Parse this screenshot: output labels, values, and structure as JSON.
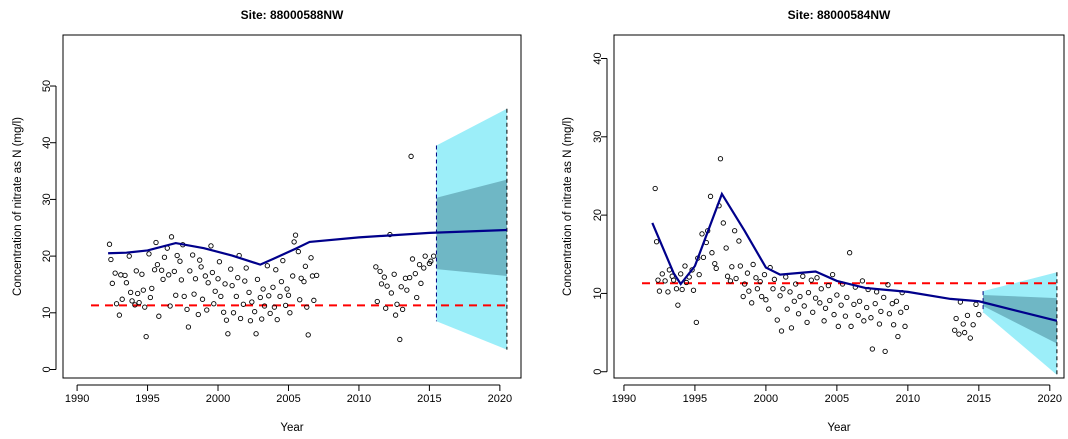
{
  "chart_data": [
    {
      "type": "scatter",
      "title": "Site:  88000588NW",
      "xlabel": "Year",
      "ylabel": "Concentration of nitrate as N (mg/l)",
      "xlim": [
        1989,
        2021.5
      ],
      "ylim": [
        -1.5,
        59
      ],
      "x_ticks": [
        1990,
        1995,
        2000,
        2005,
        2010,
        2015,
        2020
      ],
      "y_ticks": [
        0,
        10,
        20,
        30,
        40,
        50
      ],
      "grid": false,
      "colors": {
        "points": "#000000",
        "trend": "#00008b",
        "threshold": "#ff0000",
        "outer_band": "#9ceef9",
        "inner_band": "#6fb7c5"
      },
      "threshold": 11.3,
      "trend": [
        [
          1992.2,
          20.5
        ],
        [
          1993.5,
          20.6
        ],
        [
          1995,
          21.0
        ],
        [
          1997,
          22.3
        ],
        [
          1999,
          21.4
        ],
        [
          2001,
          20.1
        ],
        [
          2003,
          18.5
        ],
        [
          2004,
          19.6
        ],
        [
          2005.5,
          21.3
        ],
        [
          2006.5,
          22.5
        ],
        [
          2010,
          23.3
        ],
        [
          2015,
          24.1
        ],
        [
          2020.5,
          24.6
        ]
      ],
      "forecast": {
        "x_start": 2015.5,
        "x_end": 2020.5,
        "outer_lower": [
          8.5,
          3.5
        ],
        "outer_upper": [
          39.5,
          46.0
        ],
        "inner_lower": [
          17.7,
          16.5
        ],
        "inner_upper": [
          30.3,
          33.5
        ]
      },
      "points": [
        [
          1992.3,
          22.1
        ],
        [
          1992.4,
          19.4
        ],
        [
          1992.5,
          15.2
        ],
        [
          1992.7,
          17.0
        ],
        [
          1992.8,
          11.6
        ],
        [
          1993,
          9.6
        ],
        [
          1993.1,
          16.7
        ],
        [
          1993.2,
          12.4
        ],
        [
          1993.4,
          16.6
        ],
        [
          1993.5,
          15.3
        ],
        [
          1993.7,
          20.0
        ],
        [
          1993.8,
          13.6
        ],
        [
          1993.9,
          12.1
        ],
        [
          1994.1,
          11.4
        ],
        [
          1994.2,
          17.4
        ],
        [
          1994.3,
          13.4
        ],
        [
          1994.4,
          11.8
        ],
        [
          1994.6,
          16.8
        ],
        [
          1994.7,
          14.0
        ],
        [
          1994.8,
          11.0
        ],
        [
          1994.9,
          5.8
        ],
        [
          1995.1,
          20.4
        ],
        [
          1995.2,
          12.7
        ],
        [
          1995.3,
          14.3
        ],
        [
          1995.5,
          17.6
        ],
        [
          1995.6,
          22.4
        ],
        [
          1995.7,
          18.5
        ],
        [
          1995.8,
          9.4
        ],
        [
          1996,
          17.5
        ],
        [
          1996.1,
          15.9
        ],
        [
          1996.2,
          19.8
        ],
        [
          1996.4,
          21.4
        ],
        [
          1996.5,
          16.7
        ],
        [
          1996.6,
          11.2
        ],
        [
          1996.7,
          23.4
        ],
        [
          1996.9,
          17.3
        ],
        [
          1997,
          13.1
        ],
        [
          1997.1,
          20.1
        ],
        [
          1997.3,
          19.1
        ],
        [
          1997.4,
          15.8
        ],
        [
          1997.5,
          22.0
        ],
        [
          1997.6,
          12.9
        ],
        [
          1997.8,
          10.6
        ],
        [
          1997.9,
          7.5
        ],
        [
          1998,
          17.4
        ],
        [
          1998.2,
          20.2
        ],
        [
          1998.3,
          13.3
        ],
        [
          1998.4,
          16.0
        ],
        [
          1998.6,
          9.7
        ],
        [
          1998.7,
          19.3
        ],
        [
          1998.8,
          18.1
        ],
        [
          1998.9,
          12.4
        ],
        [
          1999.1,
          16.5
        ],
        [
          1999.2,
          10.5
        ],
        [
          1999.3,
          15.3
        ],
        [
          1999.5,
          21.8
        ],
        [
          1999.6,
          17.1
        ],
        [
          1999.7,
          11.6
        ],
        [
          1999.8,
          13.8
        ],
        [
          2000,
          16.0
        ],
        [
          2000.1,
          19.0
        ],
        [
          2000.2,
          12.9
        ],
        [
          2000.4,
          10.1
        ],
        [
          2000.5,
          15.1
        ],
        [
          2000.6,
          8.7
        ],
        [
          2000.7,
          6.3
        ],
        [
          2000.9,
          17.7
        ],
        [
          2001,
          14.8
        ],
        [
          2001.1,
          10.0
        ],
        [
          2001.3,
          12.9
        ],
        [
          2001.4,
          16.2
        ],
        [
          2001.5,
          20.1
        ],
        [
          2001.6,
          9.0
        ],
        [
          2001.8,
          11.5
        ],
        [
          2001.9,
          15.6
        ],
        [
          2002,
          17.9
        ],
        [
          2002.2,
          13.6
        ],
        [
          2002.3,
          8.6
        ],
        [
          2002.4,
          11.9
        ],
        [
          2002.6,
          10.2
        ],
        [
          2002.7,
          6.3
        ],
        [
          2002.8,
          15.9
        ],
        [
          2003,
          12.7
        ],
        [
          2003.1,
          8.9
        ],
        [
          2003.2,
          14.2
        ],
        [
          2003.3,
          11.2
        ],
        [
          2003.5,
          18.3
        ],
        [
          2003.6,
          13.0
        ],
        [
          2003.7,
          9.9
        ],
        [
          2003.9,
          14.5
        ],
        [
          2004,
          11.0
        ],
        [
          2004.1,
          17.6
        ],
        [
          2004.2,
          8.8
        ],
        [
          2004.4,
          12.9
        ],
        [
          2004.5,
          15.5
        ],
        [
          2004.6,
          19.2
        ],
        [
          2004.8,
          11.3
        ],
        [
          2004.9,
          14.2
        ],
        [
          2005,
          13.1
        ],
        [
          2005.1,
          10.0
        ],
        [
          2005.3,
          16.5
        ],
        [
          2005.4,
          22.5
        ],
        [
          2005.5,
          23.7
        ],
        [
          2005.7,
          20.8
        ],
        [
          2005.8,
          12.3
        ],
        [
          2005.9,
          16.1
        ],
        [
          2006.1,
          15.5
        ],
        [
          2006.2,
          18.2
        ],
        [
          2006.3,
          11.0
        ],
        [
          2006.4,
          6.1
        ],
        [
          2006.6,
          19.7
        ],
        [
          2006.7,
          16.5
        ],
        [
          2006.8,
          12.2
        ],
        [
          2007,
          16.6
        ],
        [
          2011.2,
          18.1
        ],
        [
          2011.3,
          12.0
        ],
        [
          2011.5,
          17.3
        ],
        [
          2011.6,
          15.1
        ],
        [
          2011.8,
          16.3
        ],
        [
          2011.9,
          10.8
        ],
        [
          2012,
          14.7
        ],
        [
          2012.2,
          23.8
        ],
        [
          2012.3,
          13.5
        ],
        [
          2012.5,
          16.8
        ],
        [
          2012.6,
          9.6
        ],
        [
          2012.7,
          11.5
        ],
        [
          2012.9,
          5.3
        ],
        [
          2013,
          14.6
        ],
        [
          2013.1,
          10.6
        ],
        [
          2013.3,
          16.1
        ],
        [
          2013.4,
          14.0
        ],
        [
          2013.6,
          16.2
        ],
        [
          2013.7,
          37.6
        ],
        [
          2013.8,
          19.5
        ],
        [
          2014,
          16.9
        ],
        [
          2014.1,
          12.7
        ],
        [
          2014.3,
          18.5
        ],
        [
          2014.4,
          15.2
        ],
        [
          2014.6,
          17.9
        ],
        [
          2014.7,
          20.0
        ],
        [
          2015,
          18.7
        ],
        [
          2015.1,
          19.1
        ],
        [
          2015.3,
          20.0
        ]
      ]
    },
    {
      "type": "scatter",
      "title": "Site:  88000584NW",
      "xlabel": "Year",
      "ylabel": "Concentration of nitrate as N (mg/l)",
      "xlim": [
        1989.3,
        2021
      ],
      "ylim": [
        -0.8,
        43
      ],
      "x_ticks": [
        1990,
        1995,
        2000,
        2005,
        2010,
        2015,
        2020
      ],
      "y_ticks": [
        0,
        10,
        20,
        30,
        40
      ],
      "grid": false,
      "colors": {
        "points": "#000000",
        "trend": "#00008b",
        "threshold": "#ff0000",
        "outer_band": "#9ceef9",
        "inner_band": "#6fb7c5"
      },
      "threshold": 11.3,
      "trend": [
        [
          1992,
          19.0
        ],
        [
          1993.5,
          12.6
        ],
        [
          1994,
          11.2
        ],
        [
          1995,
          13.5
        ],
        [
          1996.9,
          22.7
        ],
        [
          1998.5,
          18.0
        ],
        [
          2000,
          13.3
        ],
        [
          2001,
          12.4
        ],
        [
          2003.5,
          12.8
        ],
        [
          2005,
          11.6
        ],
        [
          2007,
          10.7
        ],
        [
          2010,
          10.2
        ],
        [
          2013,
          9.3
        ],
        [
          2015,
          9.0
        ],
        [
          2020.5,
          6.5
        ]
      ],
      "forecast": {
        "x_start": 2015.3,
        "x_end": 2020.5,
        "outer_lower": [
          7.6,
          -0.4
        ],
        "outer_upper": [
          10.3,
          12.7
        ],
        "inner_lower": [
          8.4,
          3.6
        ],
        "inner_upper": [
          9.8,
          9.4
        ]
      },
      "points": [
        [
          1992.2,
          23.4
        ],
        [
          1992.3,
          16.6
        ],
        [
          1992.4,
          11.7
        ],
        [
          1992.5,
          10.3
        ],
        [
          1992.7,
          12.5
        ],
        [
          1992.9,
          11.6
        ],
        [
          1993.1,
          10.2
        ],
        [
          1993.2,
          13.0
        ],
        [
          1993.4,
          12.2
        ],
        [
          1993.5,
          11.7
        ],
        [
          1993.7,
          10.6
        ],
        [
          1993.8,
          8.5
        ],
        [
          1994,
          12.5
        ],
        [
          1994.1,
          10.5
        ],
        [
          1994.3,
          13.5
        ],
        [
          1994.4,
          11.4
        ],
        [
          1994.6,
          12.1
        ],
        [
          1994.8,
          13.0
        ],
        [
          1994.9,
          10.4
        ],
        [
          1995.1,
          6.3
        ],
        [
          1995.2,
          14.5
        ],
        [
          1995.3,
          12.4
        ],
        [
          1995.5,
          17.6
        ],
        [
          1995.6,
          14.6
        ],
        [
          1995.8,
          16.5
        ],
        [
          1995.9,
          18.0
        ],
        [
          1996.1,
          22.4
        ],
        [
          1996.2,
          15.2
        ],
        [
          1996.4,
          13.8
        ],
        [
          1996.5,
          13.2
        ],
        [
          1996.7,
          21.2
        ],
        [
          1996.8,
          27.2
        ],
        [
          1997,
          19.0
        ],
        [
          1997.2,
          15.8
        ],
        [
          1997.3,
          12.2
        ],
        [
          1997.5,
          11.6
        ],
        [
          1997.6,
          13.4
        ],
        [
          1997.8,
          18.0
        ],
        [
          1997.9,
          11.9
        ],
        [
          1998.1,
          16.7
        ],
        [
          1998.2,
          13.5
        ],
        [
          1998.4,
          9.6
        ],
        [
          1998.5,
          11.2
        ],
        [
          1998.7,
          12.6
        ],
        [
          1998.8,
          10.3
        ],
        [
          1999,
          8.8
        ],
        [
          1999.1,
          13.7
        ],
        [
          1999.3,
          12.0
        ],
        [
          1999.4,
          10.6
        ],
        [
          1999.6,
          11.5
        ],
        [
          1999.7,
          9.6
        ],
        [
          1999.9,
          12.4
        ],
        [
          2000,
          9.2
        ],
        [
          2000.2,
          8.0
        ],
        [
          2000.3,
          13.3
        ],
        [
          2000.5,
          10.6
        ],
        [
          2000.6,
          11.8
        ],
        [
          2000.8,
          6.6
        ],
        [
          2001,
          9.7
        ],
        [
          2001.1,
          5.2
        ],
        [
          2001.2,
          10.6
        ],
        [
          2001.4,
          12.1
        ],
        [
          2001.5,
          8.0
        ],
        [
          2001.7,
          10.2
        ],
        [
          2001.8,
          5.6
        ],
        [
          2002,
          9.0
        ],
        [
          2002.1,
          11.2
        ],
        [
          2002.3,
          7.4
        ],
        [
          2002.4,
          9.6
        ],
        [
          2002.6,
          12.2
        ],
        [
          2002.7,
          8.4
        ],
        [
          2002.9,
          6.3
        ],
        [
          2003,
          10.1
        ],
        [
          2003.2,
          11.7
        ],
        [
          2003.3,
          7.6
        ],
        [
          2003.5,
          9.4
        ],
        [
          2003.6,
          12.0
        ],
        [
          2003.8,
          8.8
        ],
        [
          2003.9,
          10.6
        ],
        [
          2004.1,
          6.5
        ],
        [
          2004.2,
          8.1
        ],
        [
          2004.4,
          11.0
        ],
        [
          2004.5,
          9.1
        ],
        [
          2004.7,
          12.4
        ],
        [
          2004.8,
          7.3
        ],
        [
          2005,
          9.8
        ],
        [
          2005.1,
          5.8
        ],
        [
          2005.3,
          8.5
        ],
        [
          2005.4,
          11.2
        ],
        [
          2005.6,
          7.1
        ],
        [
          2005.7,
          9.5
        ],
        [
          2005.9,
          15.2
        ],
        [
          2006,
          5.8
        ],
        [
          2006.2,
          8.6
        ],
        [
          2006.3,
          10.8
        ],
        [
          2006.5,
          7.2
        ],
        [
          2006.6,
          9.0
        ],
        [
          2006.8,
          11.6
        ],
        [
          2006.9,
          6.5
        ],
        [
          2007.1,
          8.2
        ],
        [
          2007.2,
          10.5
        ],
        [
          2007.4,
          6.9
        ],
        [
          2007.5,
          2.9
        ],
        [
          2007.7,
          8.7
        ],
        [
          2007.8,
          10.2
        ],
        [
          2008,
          6.1
        ],
        [
          2008.1,
          7.7
        ],
        [
          2008.3,
          9.5
        ],
        [
          2008.4,
          2.6
        ],
        [
          2008.6,
          11.1
        ],
        [
          2008.7,
          7.4
        ],
        [
          2008.9,
          8.7
        ],
        [
          2009,
          6.0
        ],
        [
          2009.2,
          9.0
        ],
        [
          2009.3,
          4.5
        ],
        [
          2009.5,
          7.6
        ],
        [
          2009.6,
          10.1
        ],
        [
          2009.8,
          5.8
        ],
        [
          2009.9,
          8.2
        ],
        [
          2013.3,
          5.3
        ],
        [
          2013.4,
          6.8
        ],
        [
          2013.6,
          4.8
        ],
        [
          2013.7,
          8.9
        ],
        [
          2013.9,
          6.1
        ],
        [
          2014,
          5.0
        ],
        [
          2014.2,
          7.2
        ],
        [
          2014.4,
          4.3
        ],
        [
          2014.6,
          6.0
        ],
        [
          2014.8,
          8.6
        ],
        [
          2015,
          7.3
        ]
      ]
    }
  ]
}
